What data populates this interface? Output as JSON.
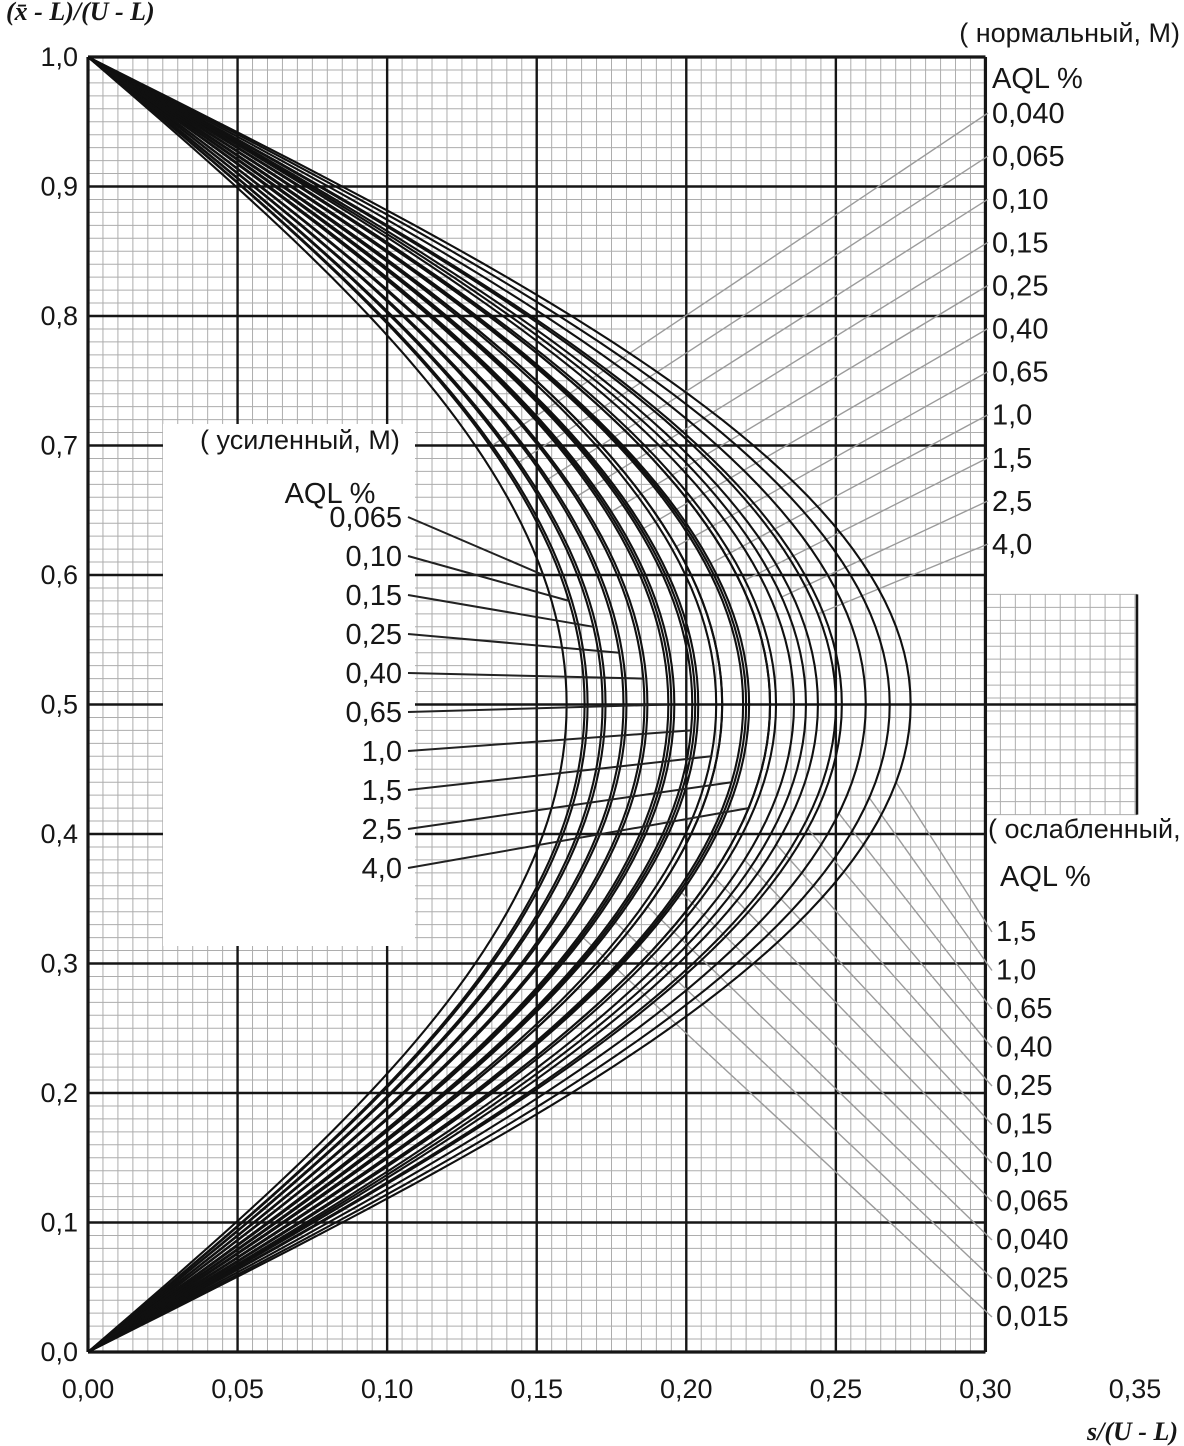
{
  "page": {
    "background": "#ffffff"
  },
  "chart_data": {
    "type": "line",
    "title": "",
    "ylabel": "(x̄ -  L)/(U -  L)",
    "xlabel": "s/(U -  L)",
    "xlim": [
      0,
      0.35
    ],
    "ylim": [
      0,
      1.0
    ],
    "x_ticks": {
      "values": [
        0,
        0.05,
        0.1,
        0.15,
        0.2,
        0.25,
        0.3,
        0.35
      ],
      "labels": [
        "0,00",
        "0,05",
        "0,10",
        "0,15",
        "0,20",
        "0,25",
        "0,30",
        "0,35"
      ]
    },
    "y_ticks": {
      "values": [
        0,
        0.1,
        0.2,
        0.3,
        0.4,
        0.5,
        0.6,
        0.7,
        0.8,
        0.9,
        1.0
      ],
      "labels": [
        "0,0",
        "0,1",
        "0,2",
        "0,3",
        "0,4",
        "0,5",
        "0,6",
        "0,7",
        "0,8",
        "0,9",
        "1,0"
      ]
    },
    "grid": {
      "minor_x": 0.005,
      "minor_y": 0.01,
      "major_x": 0.05,
      "major_y": 0.1,
      "plot_x_max": 0.3,
      "minor_color": "#adadad",
      "major_color": "#161616",
      "legend_box_white": true,
      "right_grid_patch": {
        "x_range": [
          0.3,
          0.3517
        ],
        "y_range": [
          0.415,
          0.585
        ]
      }
    },
    "curve_model": "s = s_max · sin(π · y), curves run from (0,0) to (0,1), symmetric about y = 0.5",
    "groups": [
      {
        "id": "normal",
        "heading": "( нормальный, М)",
        "aql_header": "AQL %",
        "label_side": "top-right",
        "curves": [
          {
            "aql": "0,040",
            "s_max": 0.167
          },
          {
            "aql": "0,065",
            "s_max": 0.173
          },
          {
            "aql": "0,10",
            "s_max": 0.18
          },
          {
            "aql": "0,15",
            "s_max": 0.187
          },
          {
            "aql": "0,25",
            "s_max": 0.195
          },
          {
            "aql": "0,40",
            "s_max": 0.203
          },
          {
            "aql": "0,65",
            "s_max": 0.212
          },
          {
            "aql": "1,0",
            "s_max": 0.221
          },
          {
            "aql": "1,5",
            "s_max": 0.23
          },
          {
            "aql": "2,5",
            "s_max": 0.24
          },
          {
            "aql": "4,0",
            "s_max": 0.25
          }
        ]
      },
      {
        "id": "tightened",
        "heading": "( усиленный,  М)",
        "aql_header": "AQL %",
        "label_side": "center-left-box",
        "curves": [
          {
            "aql": "0,065",
            "s_max": 0.16
          },
          {
            "aql": "0,10",
            "s_max": 0.166
          },
          {
            "aql": "0,15",
            "s_max": 0.172
          },
          {
            "aql": "0,25",
            "s_max": 0.179
          },
          {
            "aql": "0,40",
            "s_max": 0.186
          },
          {
            "aql": "0,65",
            "s_max": 0.194
          },
          {
            "aql": "1,0",
            "s_max": 0.202
          },
          {
            "aql": "1,5",
            "s_max": 0.21
          },
          {
            "aql": "2,5",
            "s_max": 0.219
          },
          {
            "aql": "4,0",
            "s_max": 0.228
          }
        ]
      },
      {
        "id": "reduced",
        "heading": "( ослабленный, Р)",
        "aql_header": "AQL %",
        "label_side": "bottom-right",
        "curves": [
          {
            "aql": "1,5",
            "s_max": 0.275
          },
          {
            "aql": "1,0",
            "s_max": 0.268
          },
          {
            "aql": "0,65",
            "s_max": 0.26
          },
          {
            "aql": "0,40",
            "s_max": 0.252
          },
          {
            "aql": "0,25",
            "s_max": 0.244
          },
          {
            "aql": "0,15",
            "s_max": 0.236
          },
          {
            "aql": "0,10",
            "s_max": 0.228
          },
          {
            "aql": "0,065",
            "s_max": 0.22
          },
          {
            "aql": "0,040",
            "s_max": 0.212
          },
          {
            "aql": "0,025",
            "s_max": 0.204
          },
          {
            "aql": "0,015",
            "s_max": 0.196
          }
        ]
      }
    ],
    "colors": {
      "curve": "#101010",
      "leader_gray": "#9b9b9b",
      "leader_dark": "#222222",
      "background": "#ffffff"
    }
  }
}
